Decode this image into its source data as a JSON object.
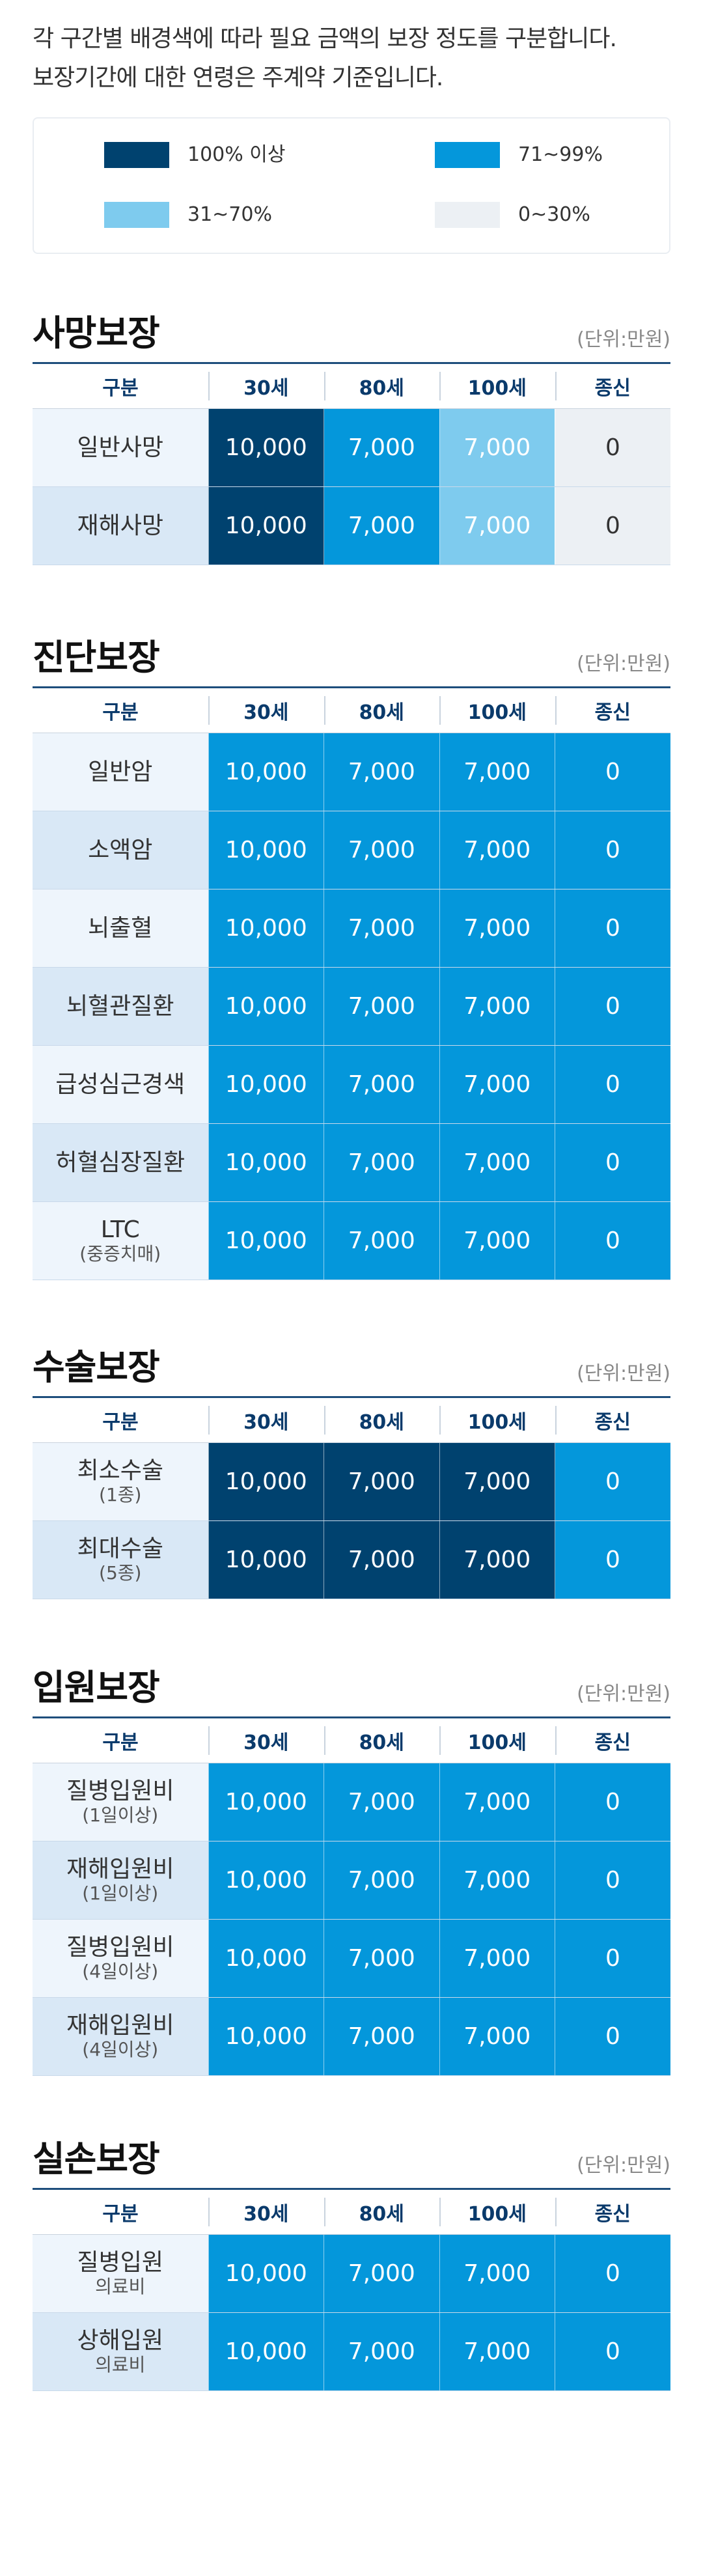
{
  "intro": {
    "line1": "각 구간별 배경색에 따라 필요 금액의 보장 정도를 구분합니다.",
    "line2": "보장기간에 대한 연령은 주계약 기준입니다."
  },
  "legend": [
    {
      "label": "100% 이상",
      "color": "#00426f"
    },
    {
      "label": "71~99%",
      "color": "#0497db"
    },
    {
      "label": "31~70%",
      "color": "#7ecbee"
    },
    {
      "label": "0~30%",
      "color": "#ecf0f4"
    }
  ],
  "unit": "(단위:만원)",
  "headers": [
    "구분",
    "30세",
    "80세",
    "100세",
    "종신"
  ],
  "sections": [
    {
      "title": "사망보장",
      "rows": [
        {
          "label": "일반사망",
          "sub": "",
          "values": [
            "10,000",
            "7,000",
            "7,000",
            "0"
          ],
          "levels": [
            "v100",
            "v71",
            "v31",
            "v0"
          ]
        },
        {
          "label": "재해사망",
          "sub": "",
          "values": [
            "10,000",
            "7,000",
            "7,000",
            "0"
          ],
          "levels": [
            "v100",
            "v71",
            "v31",
            "v0"
          ]
        }
      ]
    },
    {
      "title": "진단보장",
      "rows": [
        {
          "label": "일반암",
          "sub": "",
          "values": [
            "10,000",
            "7,000",
            "7,000",
            "0"
          ],
          "levels": [
            "v71",
            "v71",
            "v71",
            "v71"
          ]
        },
        {
          "label": "소액암",
          "sub": "",
          "values": [
            "10,000",
            "7,000",
            "7,000",
            "0"
          ],
          "levels": [
            "v71",
            "v71",
            "v71",
            "v71"
          ]
        },
        {
          "label": "뇌출혈",
          "sub": "",
          "values": [
            "10,000",
            "7,000",
            "7,000",
            "0"
          ],
          "levels": [
            "v71",
            "v71",
            "v71",
            "v71"
          ]
        },
        {
          "label": "뇌혈관질환",
          "sub": "",
          "values": [
            "10,000",
            "7,000",
            "7,000",
            "0"
          ],
          "levels": [
            "v71",
            "v71",
            "v71",
            "v71"
          ]
        },
        {
          "label": "급성심근경색",
          "sub": "",
          "values": [
            "10,000",
            "7,000",
            "7,000",
            "0"
          ],
          "levels": [
            "v71",
            "v71",
            "v71",
            "v71"
          ]
        },
        {
          "label": "허혈심장질환",
          "sub": "",
          "values": [
            "10,000",
            "7,000",
            "7,000",
            "0"
          ],
          "levels": [
            "v71",
            "v71",
            "v71",
            "v71"
          ]
        },
        {
          "label": "LTC",
          "sub": "(중증치매)",
          "values": [
            "10,000",
            "7,000",
            "7,000",
            "0"
          ],
          "levels": [
            "v71",
            "v71",
            "v71",
            "v71"
          ]
        }
      ]
    },
    {
      "title": "수술보장",
      "rows": [
        {
          "label": "최소수술",
          "sub": "(1종)",
          "values": [
            "10,000",
            "7,000",
            "7,000",
            "0"
          ],
          "levels": [
            "v100",
            "v100",
            "v100",
            "v71"
          ]
        },
        {
          "label": "최대수술",
          "sub": "(5종)",
          "values": [
            "10,000",
            "7,000",
            "7,000",
            "0"
          ],
          "levels": [
            "v100",
            "v100",
            "v100",
            "v71"
          ]
        }
      ]
    },
    {
      "title": "입원보장",
      "rows": [
        {
          "label": "질병입원비",
          "sub": "(1일이상)",
          "values": [
            "10,000",
            "7,000",
            "7,000",
            "0"
          ],
          "levels": [
            "v71",
            "v71",
            "v71",
            "v71"
          ]
        },
        {
          "label": "재해입원비",
          "sub": "(1일이상)",
          "values": [
            "10,000",
            "7,000",
            "7,000",
            "0"
          ],
          "levels": [
            "v71",
            "v71",
            "v71",
            "v71"
          ]
        },
        {
          "label": "질병입원비",
          "sub": "(4일이상)",
          "values": [
            "10,000",
            "7,000",
            "7,000",
            "0"
          ],
          "levels": [
            "v71",
            "v71",
            "v71",
            "v71"
          ]
        },
        {
          "label": "재해입원비",
          "sub": "(4일이상)",
          "values": [
            "10,000",
            "7,000",
            "7,000",
            "0"
          ],
          "levels": [
            "v71",
            "v71",
            "v71",
            "v71"
          ]
        }
      ]
    },
    {
      "title": "실손보장",
      "rows": [
        {
          "label": "질병입원",
          "sub": "의료비",
          "values": [
            "10,000",
            "7,000",
            "7,000",
            "0"
          ],
          "levels": [
            "v71",
            "v71",
            "v71",
            "v71"
          ]
        },
        {
          "label": "상해입원",
          "sub": "의료비",
          "values": [
            "10,000",
            "7,000",
            "7,000",
            "0"
          ],
          "levels": [
            "v71",
            "v71",
            "v71",
            "v71"
          ]
        }
      ]
    }
  ]
}
